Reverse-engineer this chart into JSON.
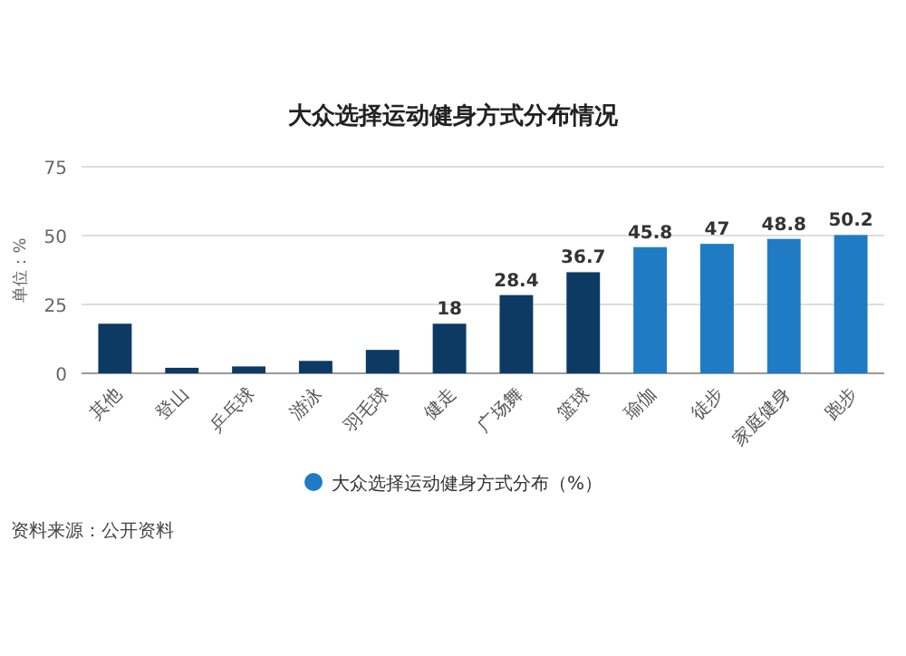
{
  "chart_data": {
    "type": "bar",
    "title": "大众选择运动健身方式分布情况",
    "ylabel": "单位：%",
    "categories": [
      "其他",
      "登山",
      "乒乓球",
      "游泳",
      "羽毛球",
      "健走",
      "广场舞",
      "篮球",
      "瑜伽",
      "徒步",
      "家庭健身",
      "跑步"
    ],
    "series": [
      {
        "name": "大众选择运动健身方式分布（%）",
        "color": "#1f7cc4",
        "values": [
          18,
          2,
          2.5,
          4.5,
          8.5,
          18,
          28.4,
          36.7,
          45.8,
          47,
          48.8,
          50.2
        ],
        "colors": [
          "#0c3a63",
          "#0c3a63",
          "#0c3a63",
          "#0c3a63",
          "#0c3a63",
          "#0c3a63",
          "#0c3a63",
          "#0c3a63",
          "#1f7cc4",
          "#1f7cc4",
          "#1f7cc4",
          "#1f7cc4"
        ],
        "value_labels": [
          null,
          null,
          null,
          null,
          null,
          "18",
          "28.4",
          "36.7",
          "45.8",
          "47",
          "48.8",
          "50.2"
        ]
      }
    ],
    "ylim": [
      0,
      75
    ],
    "yticks": [
      0,
      25,
      50,
      75
    ],
    "grid": "y",
    "legend": "bottom",
    "annotations": [
      "资料来源：公开资料"
    ]
  }
}
